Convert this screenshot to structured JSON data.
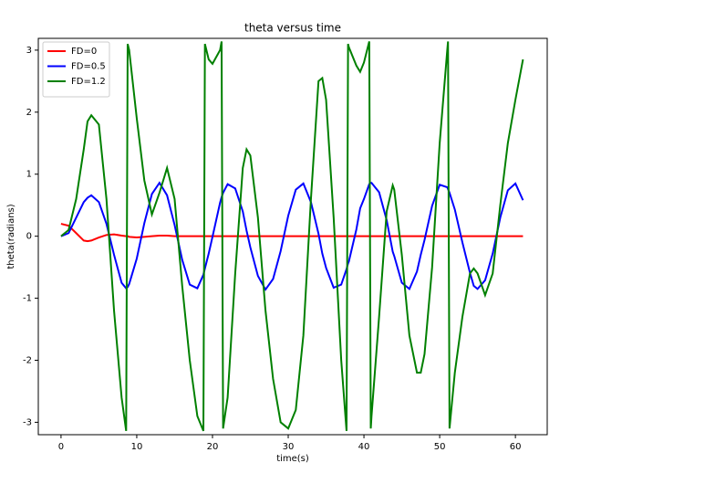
{
  "chart_data": {
    "type": "line",
    "title": "theta versus time",
    "xlabel": "time(s)",
    "ylabel": "theta(radians)",
    "x": [
      0,
      1,
      2,
      3,
      3.5,
      4,
      5,
      6,
      7,
      8,
      8.6,
      8.8,
      9,
      10,
      11,
      12,
      13,
      14,
      15,
      16,
      17,
      18,
      18.8,
      19,
      19.5,
      20,
      21,
      21.2,
      21.4,
      22,
      23,
      24,
      24.5,
      25,
      26,
      27,
      28,
      29,
      30,
      31,
      32,
      33,
      34,
      34.5,
      35,
      36,
      37,
      37.7,
      37.9,
      38,
      39,
      39.5,
      40,
      40.7,
      40.9,
      41,
      42,
      43,
      43.8,
      44,
      45,
      46,
      47,
      47.5,
      48,
      49,
      50,
      51,
      51.1,
      51.3,
      52,
      53,
      54,
      54.5,
      55,
      56,
      57,
      58,
      59,
      60,
      61
    ],
    "series": [
      {
        "name": "FD=0",
        "color": "#ff0000",
        "values": [
          0.2,
          0.17,
          0.05,
          -0.07,
          -0.08,
          -0.07,
          -0.02,
          0.02,
          0.03,
          0.01,
          0,
          0,
          -0.01,
          -0.02,
          -0.01,
          0,
          0.01,
          0.01,
          0,
          0,
          0,
          0,
          0,
          0,
          0,
          0,
          0,
          0,
          0,
          0,
          0,
          0,
          0,
          0,
          0,
          0,
          0,
          0,
          0,
          0,
          0,
          0,
          0,
          0,
          0,
          0,
          0,
          0,
          0,
          0,
          0,
          0,
          0,
          0,
          0,
          0,
          0,
          0,
          0,
          0,
          0,
          0,
          0,
          0,
          0,
          0,
          0,
          0,
          0,
          0,
          0,
          0,
          0,
          0,
          0,
          0,
          0,
          0,
          0,
          0,
          0
        ]
      },
      {
        "name": "FD=0.5",
        "color": "#0000ff",
        "values": [
          0,
          0.05,
          0.3,
          0.55,
          0.62,
          0.66,
          0.55,
          0.2,
          -0.3,
          -0.75,
          -0.84,
          -0.82,
          -0.77,
          -0.36,
          0.21,
          0.68,
          0.86,
          0.66,
          0.18,
          -0.38,
          -0.78,
          -0.84,
          -0.62,
          -0.52,
          -0.28,
          -0.01,
          0.54,
          0.63,
          0.7,
          0.84,
          0.77,
          0.4,
          0.09,
          -0.18,
          -0.64,
          -0.86,
          -0.69,
          -0.24,
          0.33,
          0.75,
          0.85,
          0.55,
          0.04,
          -0.28,
          -0.51,
          -0.83,
          -0.78,
          -0.53,
          -0.44,
          -0.41,
          0.11,
          0.45,
          0.6,
          0.84,
          0.86,
          0.86,
          0.71,
          0.26,
          -0.25,
          -0.32,
          -0.75,
          -0.85,
          -0.57,
          -0.3,
          -0.06,
          0.49,
          0.83,
          0.79,
          0.76,
          0.7,
          0.43,
          -0.1,
          -0.59,
          -0.8,
          -0.85,
          -0.71,
          -0.28,
          0.3,
          0.74,
          0.85,
          0.58
        ]
      },
      {
        "name": "FD=1.2",
        "color": "#008000",
        "values": [
          0,
          0.1,
          0.6,
          1.4,
          1.85,
          1.95,
          1.8,
          0.6,
          -1.2,
          -2.6,
          -3.14,
          3.1,
          3.0,
          1.9,
          0.9,
          0.35,
          0.7,
          1.1,
          0.6,
          -0.8,
          -2.0,
          -2.9,
          -3.14,
          3.1,
          2.85,
          2.78,
          3.0,
          3.14,
          -3.1,
          -2.6,
          -0.6,
          1.1,
          1.4,
          1.3,
          0.3,
          -1.2,
          -2.3,
          -3.0,
          -3.1,
          -2.8,
          -1.6,
          0.6,
          2.5,
          2.55,
          2.2,
          0.3,
          -2.0,
          -3.14,
          3.1,
          3.05,
          2.75,
          2.65,
          2.8,
          3.14,
          -3.1,
          -2.9,
          -1.3,
          0.4,
          0.82,
          0.75,
          -0.3,
          -1.6,
          -2.2,
          -2.2,
          -1.9,
          -0.5,
          1.5,
          3.0,
          3.14,
          -3.1,
          -2.2,
          -1.3,
          -0.6,
          -0.52,
          -0.6,
          -0.95,
          -0.6,
          0.5,
          1.5,
          2.2,
          2.85
        ]
      }
    ],
    "xlim": [
      -3,
      64.2
    ],
    "ylim": [
      -3.2,
      3.19
    ],
    "xticks": [
      0,
      10,
      20,
      30,
      40,
      50,
      60
    ],
    "yticks": [
      -3,
      -2,
      -1,
      0,
      1,
      2,
      3
    ],
    "grid": false,
    "legend": "upper left"
  }
}
